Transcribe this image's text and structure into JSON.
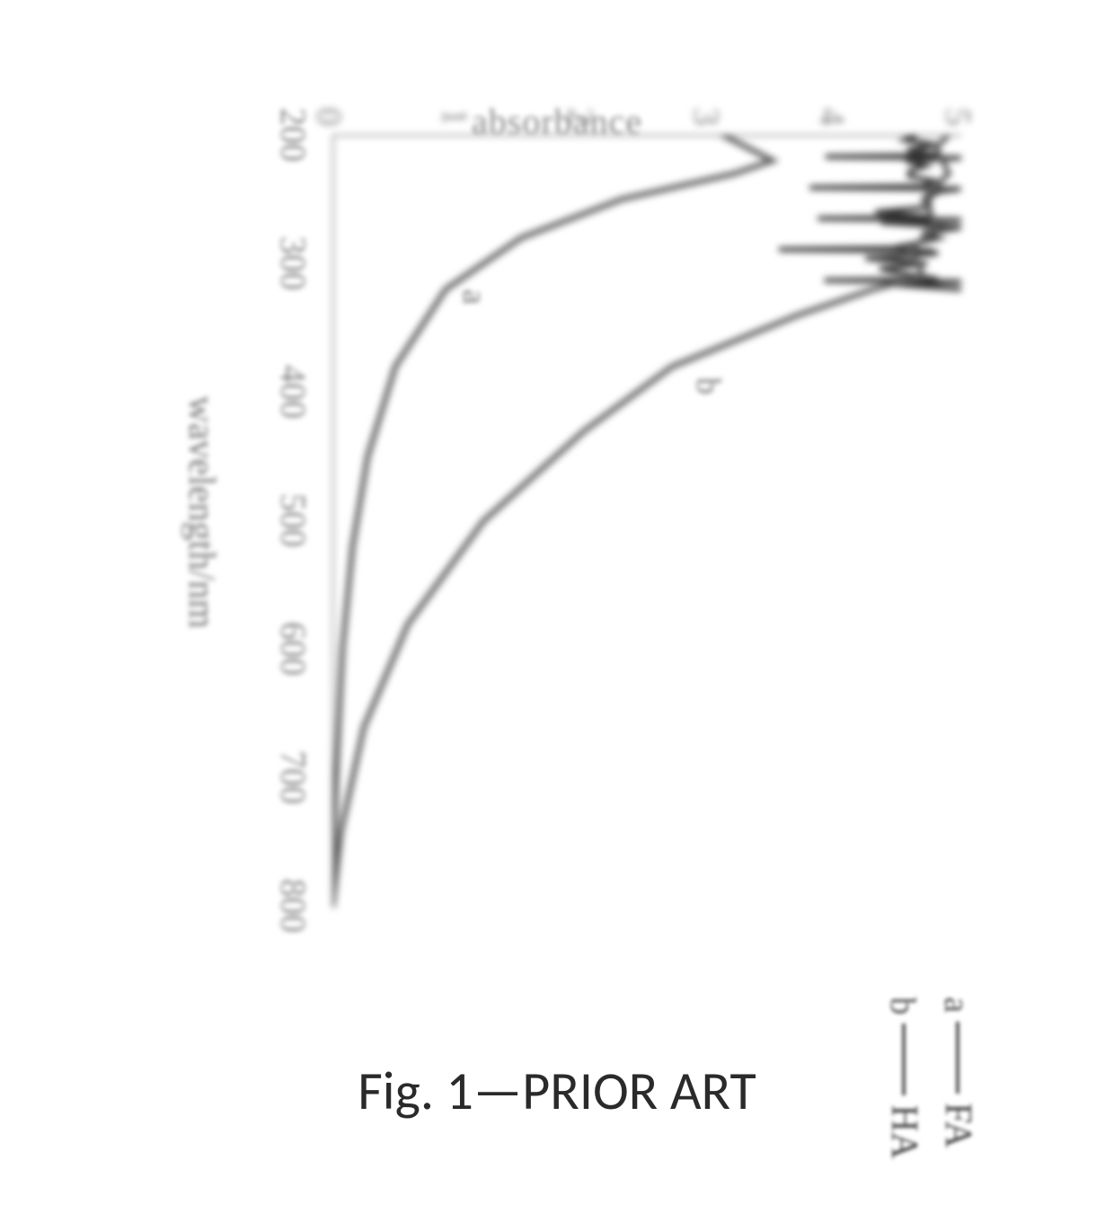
{
  "chart": {
    "type": "line",
    "ylabel": "absorbance",
    "xlabel": "wavelength/nm",
    "xlim": [
      200,
      800
    ],
    "ylim": [
      0,
      5
    ],
    "xtick_step": 100,
    "ytick_step": 1,
    "xticks": [
      200,
      300,
      400,
      500,
      600,
      700,
      800
    ],
    "yticks": [
      0,
      1,
      2,
      3,
      4,
      5
    ],
    "axis_color": "#6a6a6a",
    "line_color": "#5a5a5a",
    "noise_color": "#2b2b2b",
    "line_width": 6,
    "background_color": "#ffffff",
    "label_fontsize": 40,
    "tick_fontsize": 40,
    "series_a": {
      "name": "FA",
      "key": "a",
      "curve_label": "a",
      "data": [
        [
          200,
          3.1
        ],
        [
          210,
          3.3
        ],
        [
          220,
          3.5
        ],
        [
          230,
          3.2
        ],
        [
          250,
          2.3
        ],
        [
          280,
          1.5
        ],
        [
          320,
          0.9
        ],
        [
          380,
          0.5
        ],
        [
          450,
          0.28
        ],
        [
          520,
          0.16
        ],
        [
          600,
          0.08
        ],
        [
          700,
          0.03
        ],
        [
          800,
          0.0
        ]
      ]
    },
    "series_b": {
      "name": "HA",
      "key": "b",
      "curve_label": "b",
      "noisy_peak_range": [
        200,
        320
      ],
      "data": [
        [
          200,
          4.9
        ],
        [
          210,
          4.8
        ],
        [
          230,
          4.9
        ],
        [
          250,
          4.7
        ],
        [
          270,
          4.8
        ],
        [
          290,
          4.6
        ],
        [
          310,
          4.7
        ],
        [
          320,
          4.3
        ],
        [
          340,
          3.7
        ],
        [
          380,
          2.7
        ],
        [
          430,
          2.0
        ],
        [
          500,
          1.2
        ],
        [
          580,
          0.6
        ],
        [
          660,
          0.25
        ],
        [
          740,
          0.07
        ],
        [
          800,
          0.0
        ]
      ]
    },
    "curve_label_a_pos": {
      "x": 320,
      "y": 1.0
    },
    "curve_label_b_pos": {
      "x": 390,
      "y": 2.9
    }
  },
  "legend": {
    "rows": [
      {
        "key": "a",
        "label": "FA"
      },
      {
        "key": "b",
        "label": "HA"
      }
    ]
  },
  "caption": "Fig. 1—PRIOR ART"
}
